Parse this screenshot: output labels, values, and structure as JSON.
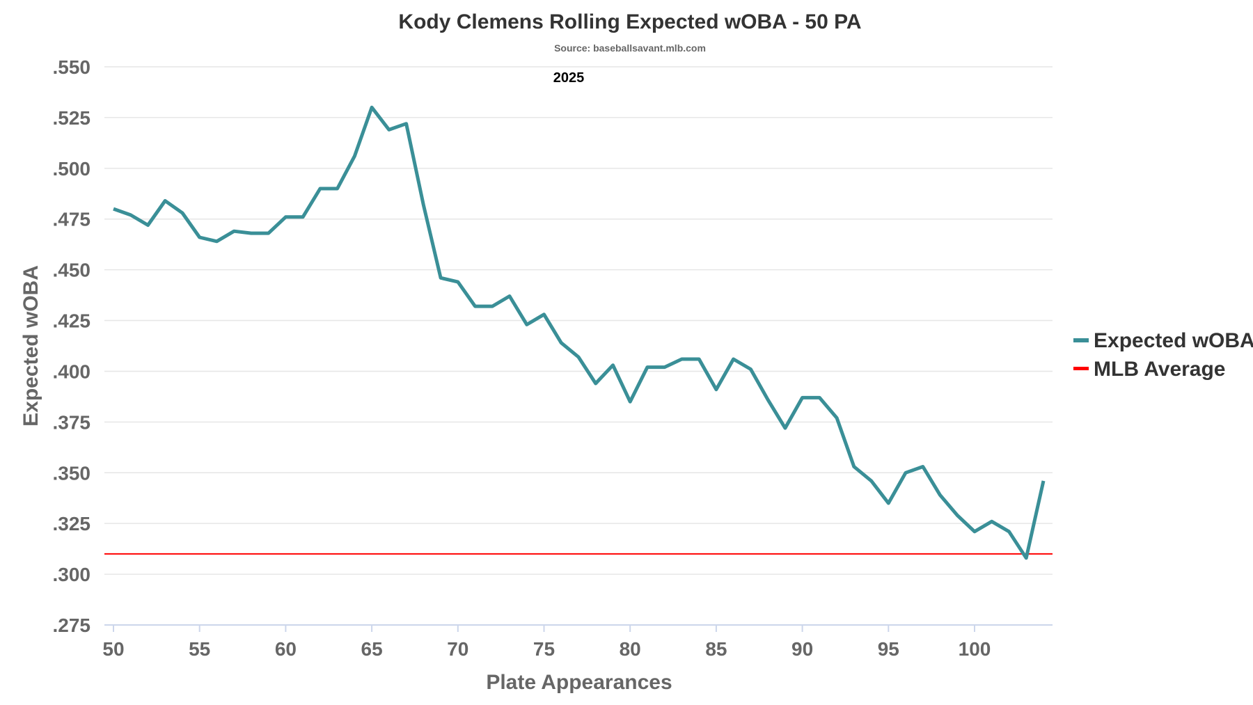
{
  "chart_data": {
    "type": "line",
    "title": "Kody Clemens Rolling Expected wOBA - 50 PA",
    "subtitle": "Source: baseballsavant.mlb.com",
    "annotation": "2025",
    "xlabel": "Plate Appearances",
    "ylabel": "Expected wOBA",
    "xlim": [
      49.5,
      104.5
    ],
    "ylim": [
      0.275,
      0.55
    ],
    "x_ticks": [
      "50",
      "55",
      "60",
      "65",
      "70",
      "75",
      "80",
      "85",
      "90",
      "95",
      "100"
    ],
    "y_ticks": [
      ".550",
      ".525",
      ".500",
      ".475",
      ".450",
      ".425",
      ".400",
      ".375",
      ".350",
      ".325",
      ".300",
      ".275"
    ],
    "grid": true,
    "legend_position": "right",
    "x": [
      50,
      51,
      52,
      53,
      54,
      55,
      56,
      57,
      58,
      59,
      60,
      61,
      62,
      63,
      64,
      65,
      66,
      67,
      68,
      69,
      70,
      71,
      72,
      73,
      74,
      75,
      76,
      77,
      78,
      79,
      80,
      81,
      82,
      83,
      84,
      85,
      86,
      87,
      88,
      89,
      90,
      91,
      92,
      93,
      94,
      95,
      96,
      97,
      98,
      99,
      100,
      101,
      102,
      103,
      104
    ],
    "series": [
      {
        "name": "Expected wOBA",
        "color": "#3a8f97",
        "values": [
          0.48,
          0.477,
          0.472,
          0.484,
          0.478,
          0.466,
          0.464,
          0.469,
          0.468,
          0.468,
          0.476,
          0.476,
          0.49,
          0.49,
          0.506,
          0.53,
          0.519,
          0.522,
          0.482,
          0.446,
          0.444,
          0.432,
          0.432,
          0.437,
          0.423,
          0.428,
          0.414,
          0.407,
          0.394,
          0.403,
          0.385,
          0.402,
          0.402,
          0.406,
          0.406,
          0.391,
          0.406,
          0.401,
          0.386,
          0.372,
          0.387,
          0.387,
          0.377,
          0.353,
          0.346,
          0.335,
          0.35,
          0.353,
          0.339,
          0.329,
          0.321,
          0.326,
          0.321,
          0.308,
          0.346
        ]
      },
      {
        "name": "MLB Average",
        "color": "#ff0000",
        "value": 0.31
      }
    ]
  }
}
